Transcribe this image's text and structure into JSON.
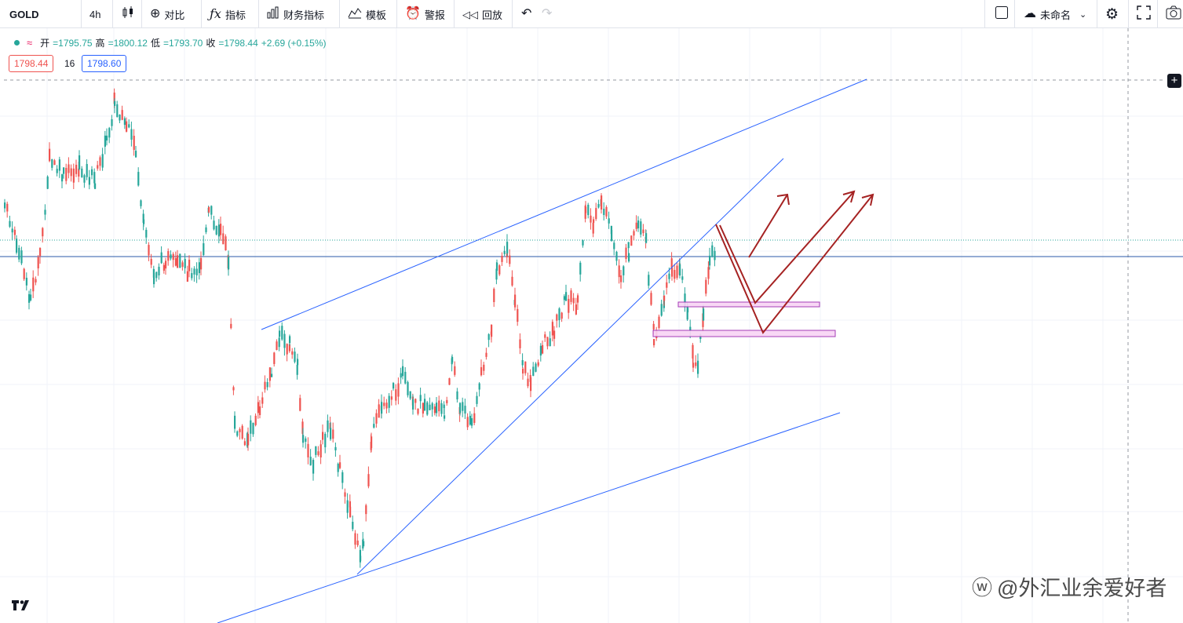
{
  "toolbar": {
    "symbol": "GOLD",
    "interval": "4h",
    "compare": "对比",
    "indicators": "指标",
    "financials": "财务指标",
    "templates": "模板",
    "alert": "警报",
    "replay": "回放",
    "layout_name": "未命名"
  },
  "legend": {
    "open_label": "开",
    "open": "=1795.75",
    "high_label": "高",
    "high": "=1800.12",
    "low_label": "低",
    "low": "=1793.70",
    "close_label": "收",
    "close": "=1798.44",
    "change": "+2.69 (+0.15%)"
  },
  "quote": {
    "bid": "1798.44",
    "spread": "16",
    "ask": "1798.60"
  },
  "watermark": "@外汇业余爱好者",
  "colors": {
    "up": "#26a69a",
    "down": "#ef5350",
    "trendline": "#2962ff",
    "arrow": "#a52222",
    "zone": "#e1bee7"
  },
  "icons": [
    "candles-icon",
    "plus-circle-icon",
    "fx-icon",
    "bar-chart-icon",
    "template-icon",
    "alarm-icon",
    "replay-icon",
    "undo-icon",
    "redo-icon",
    "square-icon",
    "cloud-icon",
    "chevron-down-icon",
    "gear-icon",
    "fullscreen-icon",
    "camera-icon"
  ]
}
